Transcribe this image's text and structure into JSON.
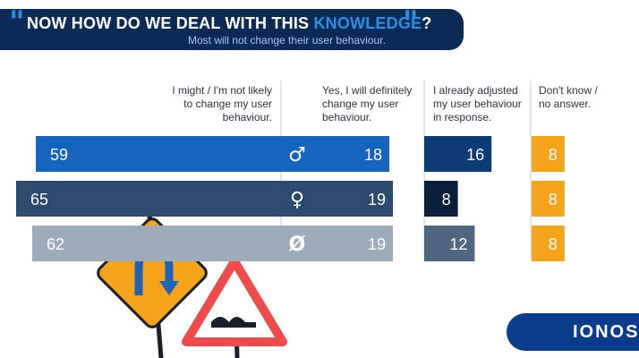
{
  "header": {
    "title_pre": "NOW HOW DO WE DEAL WITH THIS ",
    "title_highlight": "KNOWLEDGE",
    "title_post": "?",
    "subtitle": "Most will not change their user behaviour."
  },
  "logo": "IONOS",
  "colors": {
    "navy": "#0b2a55",
    "accent_blue": "#2d8fe0",
    "orange": "#f4a31a"
  },
  "chart_data": {
    "type": "bar",
    "stacked": false,
    "categories": [
      "male-icon",
      "female-icon",
      "no-answer-icon"
    ],
    "category_symbols": [
      "♂",
      "♀",
      "Ø"
    ],
    "series": [
      {
        "name": "I might / I'm not likely to change my user behaviour.",
        "values": [
          59,
          65,
          62
        ]
      },
      {
        "name": "Yes, I will definitely change my user behaviour.",
        "values": [
          18,
          19,
          19
        ]
      },
      {
        "name": "I already adjusted my user behaviour in response.",
        "values": [
          16,
          8,
          12
        ]
      },
      {
        "name": "Don't know / no answer.",
        "values": [
          8,
          8,
          8
        ]
      }
    ],
    "column_headers": [
      "I might / I'm not likely\nto change my user\nbehaviour.",
      "Yes, I will definitely\nchange my user\nbehaviour.",
      "I already adjusted\nmy user behaviour\nin response.",
      "Don't know /\nno answer."
    ],
    "row_colors": [
      "#1565c0",
      "#2c4a6e",
      "#9eabbb"
    ],
    "adjusted_colors": [
      "#0d3b75",
      "#0a1f3c",
      "#4e6680"
    ],
    "legend": "column-headers-top",
    "grid": false
  }
}
